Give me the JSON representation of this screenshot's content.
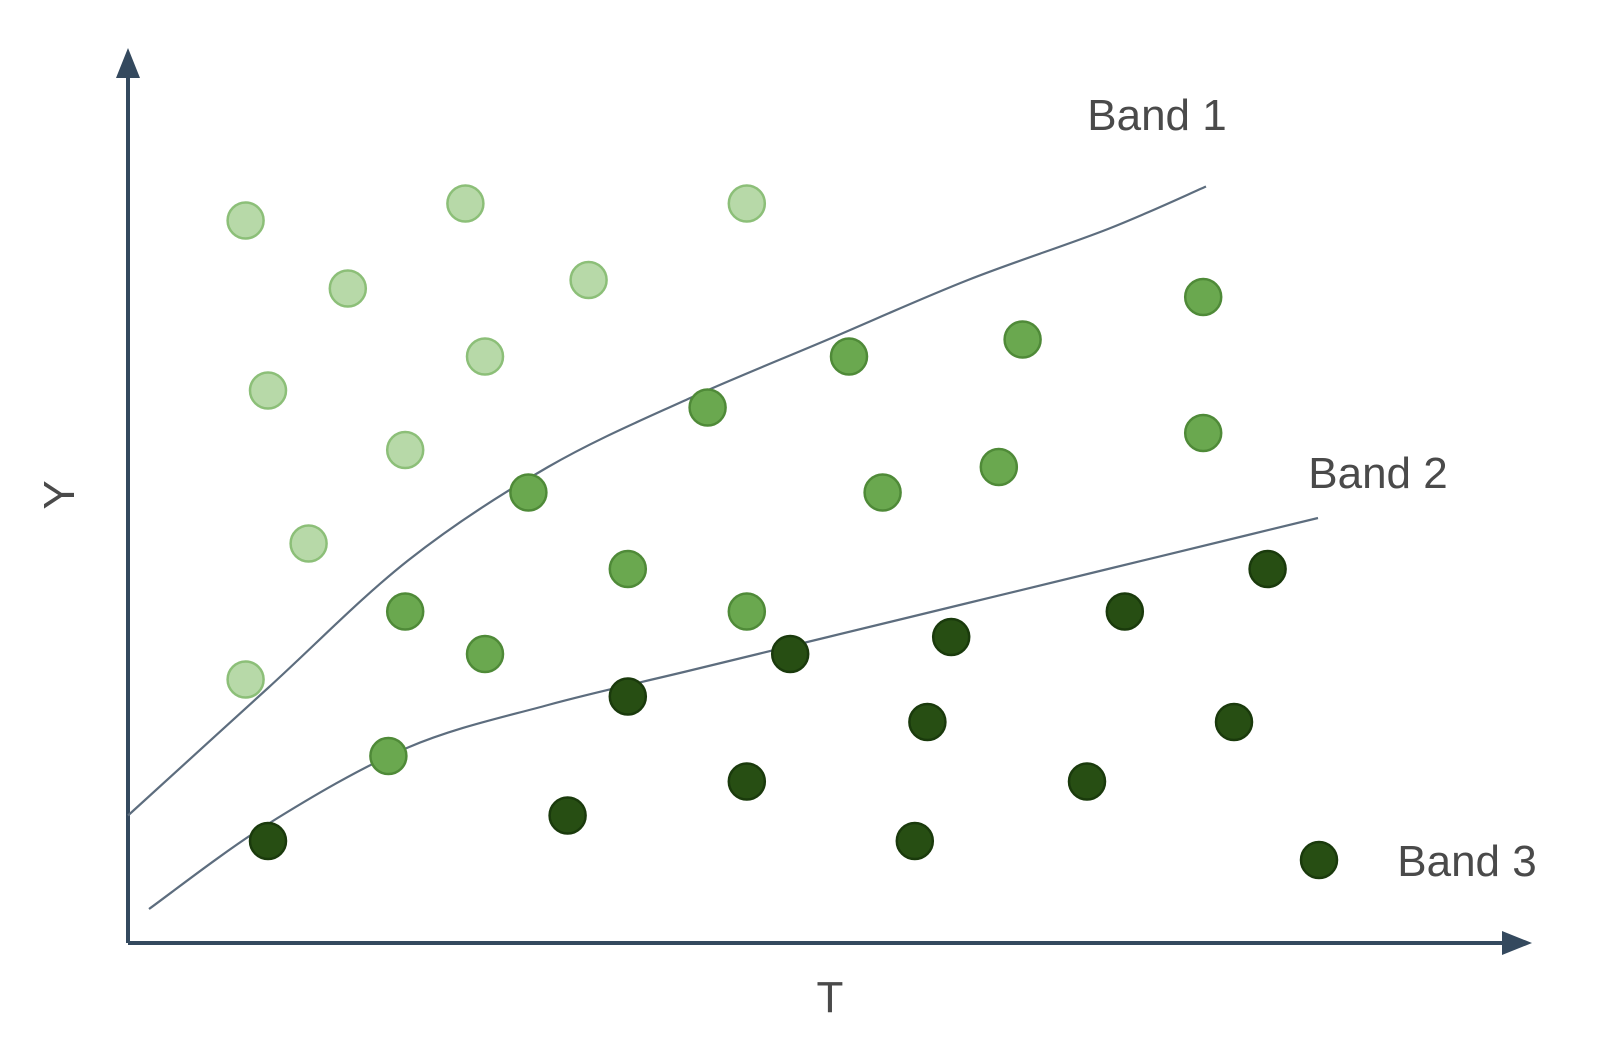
{
  "chart_data": {
    "type": "scatter",
    "title": "",
    "xlabel": "T",
    "ylabel": "Y",
    "xlim": [
      0,
      100
    ],
    "ylim": [
      0,
      100
    ],
    "grid": false,
    "colors": {
      "axis": "#34495e",
      "curve": "#5d6d7e",
      "band1_fill": "#b7d9a8",
      "band1_stroke": "#8cbf78",
      "band2_fill": "#6aa84f",
      "band2_stroke": "#4f8a38",
      "band3_fill": "#274e13",
      "band3_stroke": "#1a3a0c"
    },
    "curves": [
      {
        "name": "Band 1",
        "points": [
          [
            0,
            15
          ],
          [
            10,
            30
          ],
          [
            20,
            45
          ],
          [
            30,
            56
          ],
          [
            40,
            64
          ],
          [
            50,
            71
          ],
          [
            60,
            78
          ],
          [
            70,
            84
          ],
          [
            77,
            89
          ]
        ]
      },
      {
        "name": "Band 2",
        "points": [
          [
            1.5,
            4
          ],
          [
            10,
            14
          ],
          [
            20,
            23
          ],
          [
            30,
            28
          ],
          [
            40,
            32
          ],
          [
            50,
            36
          ],
          [
            60,
            40
          ],
          [
            70,
            44
          ],
          [
            80,
            48
          ],
          [
            85,
            50
          ]
        ]
      }
    ],
    "series": [
      {
        "name": "Band 1",
        "points": [
          [
            8.4,
            85
          ],
          [
            24.1,
            87
          ],
          [
            44.2,
            87
          ],
          [
            15.7,
            77
          ],
          [
            32.9,
            78
          ],
          [
            10,
            65
          ],
          [
            25.5,
            69
          ],
          [
            19.8,
            58
          ],
          [
            12.9,
            47
          ],
          [
            8.4,
            31
          ]
        ]
      },
      {
        "name": "Band 2",
        "points": [
          [
            51.5,
            69
          ],
          [
            63.9,
            71
          ],
          [
            76.8,
            76
          ],
          [
            41.4,
            63
          ],
          [
            28.6,
            53
          ],
          [
            53.9,
            53
          ],
          [
            62.2,
            56
          ],
          [
            76.8,
            60
          ],
          [
            35.7,
            44
          ],
          [
            44.2,
            39
          ],
          [
            19.8,
            39
          ],
          [
            25.5,
            34
          ],
          [
            18.6,
            22
          ]
        ]
      },
      {
        "name": "Band 3",
        "points": [
          [
            81.4,
            44
          ],
          [
            71.2,
            39
          ],
          [
            58.8,
            36
          ],
          [
            47.3,
            34
          ],
          [
            35.7,
            29
          ],
          [
            57.1,
            26
          ],
          [
            79,
            26
          ],
          [
            44.2,
            19
          ],
          [
            68.5,
            19
          ],
          [
            31.4,
            15
          ],
          [
            56.2,
            12
          ],
          [
            10,
            12
          ]
        ]
      }
    ],
    "annotations": [
      {
        "text": "Band 1",
        "target": "curve-band-1"
      },
      {
        "text": "Band 2",
        "target": "curve-band-2"
      },
      {
        "text": "Band 3",
        "target": "legend-marker-band-3"
      }
    ]
  }
}
